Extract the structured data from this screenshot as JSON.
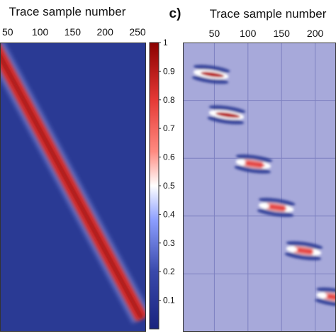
{
  "colors": {
    "left_bg": "#2a3a94",
    "right_bg": "#a7a9da",
    "grid": "#7d80c0",
    "frame": "#333333"
  },
  "chart_data": [
    {
      "id": "left",
      "type": "heatmap",
      "title": "",
      "xlabel": "Trace sample number",
      "ylabel": "",
      "x_ticks": [
        "50",
        "100",
        "150",
        "200",
        "250"
      ],
      "xlim": [
        0,
        250
      ],
      "ylim": [
        0,
        1
      ],
      "series": [
        {
          "kind": "diagonal-band",
          "x": [
            0,
            250
          ],
          "y": [
            0.08,
            0.94
          ],
          "peak": 1
        }
      ]
    },
    {
      "id": "colorbar",
      "type": "colorbar",
      "ticks": [
        "1",
        "0.9",
        "0.8",
        "0.7",
        "0.6",
        "0.5",
        "0.4",
        "0.3",
        "0.2",
        "0.1"
      ],
      "range": [
        0,
        1
      ],
      "colormap": [
        "#1a237e",
        "#3949ab",
        "#8c9eff",
        "#ffffff",
        "#ff8a80",
        "#e53935",
        "#8b0000"
      ]
    },
    {
      "id": "right",
      "type": "heatmap",
      "panel_label": "c)",
      "title": "",
      "xlabel": "Trace sample number",
      "ylabel": "",
      "x_ticks": [
        "50",
        "100",
        "150",
        "200"
      ],
      "xlim": [
        0,
        250
      ],
      "ylim": [
        0,
        1
      ],
      "blobs": [
        {
          "x": 45,
          "y": 0.89,
          "amp": 0.85
        },
        {
          "x": 68,
          "y": 0.75,
          "amp": 0.9
        },
        {
          "x": 108,
          "y": 0.58,
          "amp": 0.7
        },
        {
          "x": 142,
          "y": 0.43,
          "amp": 0.6
        },
        {
          "x": 183,
          "y": 0.28,
          "amp": 0.55
        },
        {
          "x": 228,
          "y": 0.12,
          "amp": 0.6
        }
      ]
    }
  ]
}
